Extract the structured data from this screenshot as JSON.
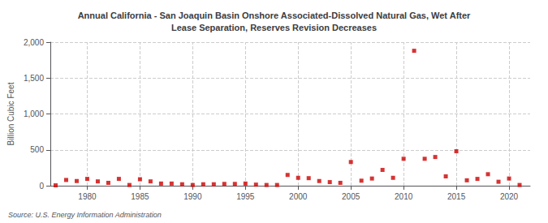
{
  "chart_data": {
    "type": "scatter",
    "title": "Annual California - San Joaquin Basin Onshore Associated-Dissolved Natural Gas, Wet After\nLease Separation, Reserves Revision Decreases",
    "ylabel": "Billion Cubic Feet",
    "annotation": "Source: U.S. Energy Information Administration",
    "x": [
      1977,
      1978,
      1979,
      1980,
      1981,
      1982,
      1983,
      1984,
      1985,
      1986,
      1987,
      1988,
      1989,
      1990,
      1991,
      1992,
      1993,
      1994,
      1995,
      1996,
      1997,
      1998,
      1999,
      2000,
      2001,
      2002,
      2003,
      2004,
      2005,
      2006,
      2007,
      2008,
      2009,
      2010,
      2011,
      2012,
      2013,
      2014,
      2015,
      2016,
      2017,
      2018,
      2019,
      2020,
      2021
    ],
    "values": [
      5,
      80,
      65,
      95,
      60,
      40,
      95,
      10,
      90,
      60,
      30,
      30,
      20,
      10,
      20,
      20,
      25,
      25,
      30,
      15,
      10,
      10,
      150,
      110,
      105,
      65,
      50,
      40,
      330,
      70,
      100,
      220,
      110,
      375,
      1880,
      375,
      400,
      130,
      480,
      75,
      95,
      160,
      55,
      100,
      10
    ],
    "color": "#cc0000",
    "marker": "square",
    "xlim": [
      1976.5,
      2022
    ],
    "xticks": [
      1980,
      1985,
      1990,
      1995,
      2000,
      2005,
      2010,
      2015,
      2020
    ],
    "ylim": [
      0,
      2000
    ],
    "yticks": [
      0,
      500,
      {
        "value": 1000,
        "label": "1,000"
      },
      {
        "value": 1500,
        "label": "1,500"
      },
      {
        "value": 2000,
        "label": "2,000"
      }
    ],
    "grid": true
  }
}
